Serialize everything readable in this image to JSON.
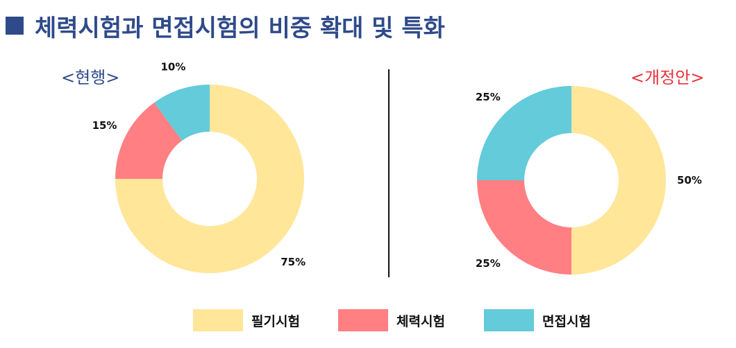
{
  "title": "체력시험과 면접시험의 비중 확대 및 특화",
  "colors": {
    "title": "#2F4A8A",
    "current_label": "#2F4A8A",
    "proposed_label": "#E8323C",
    "written": "#FFE699",
    "physical": "#FF7F82",
    "interview": "#63CBDA"
  },
  "chart_data": [
    {
      "type": "pie",
      "label": "<현행>",
      "categories": [
        "필기시험",
        "체력시험",
        "면접시험"
      ],
      "values": [
        75,
        15,
        10
      ],
      "value_labels": [
        "75%",
        "15%",
        "10%"
      ]
    },
    {
      "type": "pie",
      "label": "<개정안>",
      "categories": [
        "필기시험",
        "체력시험",
        "면접시험"
      ],
      "values": [
        50,
        25,
        25
      ],
      "value_labels": [
        "50%",
        "25%",
        "25%"
      ]
    }
  ],
  "legend": [
    {
      "label": "필기시험",
      "color": "#FFE699"
    },
    {
      "label": "체력시험",
      "color": "#FF7F82"
    },
    {
      "label": "면접시험",
      "color": "#63CBDA"
    }
  ]
}
